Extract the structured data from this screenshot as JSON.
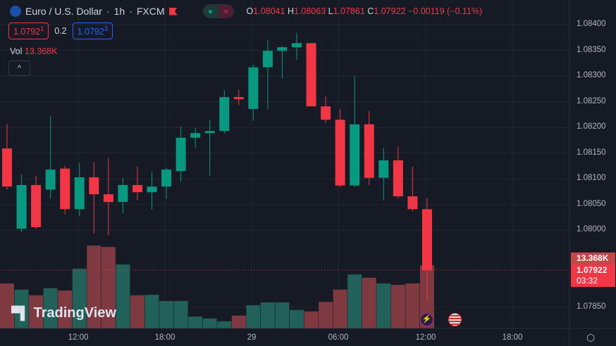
{
  "header": {
    "symbol": "Euro / U.S. Dollar",
    "interval": "1h",
    "exchange": "FXCM",
    "sep": "·",
    "approx_icon": "≈",
    "ohlc": {
      "o_label": "O",
      "o": "1.08041",
      "h_label": "H",
      "h": "1.08063",
      "l_label": "L",
      "l": "1.07861",
      "c_label": "C",
      "c": "1.07922",
      "change": "−0.00119 (−0.11%)"
    }
  },
  "quotes": {
    "sell": "1.0792",
    "sell_sup": "1",
    "spread": "0.2",
    "buy": "1.0792",
    "buy_sup": "3"
  },
  "volume_legend": {
    "label": "Vol",
    "value": "13.368K"
  },
  "logo": "TradingView",
  "price_axis": [
    "1.08400",
    "1.08350",
    "1.08300",
    "1.08250",
    "1.08200",
    "1.08150",
    "1.08100",
    "1.08050",
    "1.08000",
    "1.07850"
  ],
  "time_axis": [
    "12:00",
    "18:00",
    "29",
    "06:00",
    "12:00",
    "18:00"
  ],
  "tags": {
    "volume": "13.368K",
    "price": "1.07922",
    "countdown": "03:32"
  },
  "colors": {
    "up": "#089981",
    "down": "#f23645",
    "up_vol": "#22605a",
    "down_vol": "#7e3a40"
  },
  "chart_data": {
    "type": "candlestick",
    "ylim": [
      1.078,
      1.0845
    ],
    "candles": [
      [
        1.08159,
        1.08207,
        1.08079,
        1.08085
      ],
      [
        1.08003,
        1.08109,
        1.07996,
        1.08088
      ],
      [
        1.08088,
        1.08106,
        1.08003,
        1.08006
      ],
      [
        1.08079,
        1.08222,
        1.08061,
        1.08118
      ],
      [
        1.0812,
        1.08125,
        1.08031,
        1.08041
      ],
      [
        1.08041,
        1.08131,
        1.08028,
        1.08103
      ],
      [
        1.08103,
        1.08133,
        1.07994,
        1.0807
      ],
      [
        1.0807,
        1.0814,
        1.0799,
        1.08055
      ],
      [
        1.08055,
        1.08102,
        1.08033,
        1.08088
      ],
      [
        1.08088,
        1.08124,
        1.08058,
        1.08074
      ],
      [
        1.08074,
        1.08113,
        1.0804,
        1.08085
      ],
      [
        1.08085,
        1.08122,
        1.08061,
        1.08118
      ],
      [
        1.08115,
        1.08202,
        1.08095,
        1.0818
      ],
      [
        1.0818,
        1.08199,
        1.08161,
        1.08189
      ],
      [
        1.08189,
        1.08215,
        1.08106,
        1.08193
      ],
      [
        1.08193,
        1.08273,
        1.08188,
        1.08259
      ],
      [
        1.08259,
        1.08273,
        1.08243,
        1.08255
      ],
      [
        1.08236,
        1.08322,
        1.08213,
        1.08317
      ],
      [
        1.08317,
        1.0837,
        1.08236,
        1.08349
      ],
      [
        1.08349,
        1.08359,
        1.08295,
        1.08356
      ],
      [
        1.08356,
        1.08384,
        1.08332,
        1.08364
      ],
      [
        1.08364,
        1.08364,
        1.08241,
        1.08241
      ],
      [
        1.08241,
        1.0826,
        1.08208,
        1.08215
      ],
      [
        1.08215,
        1.08236,
        1.08084,
        1.08087
      ],
      [
        1.08087,
        1.083,
        1.08084,
        1.08206
      ],
      [
        1.08206,
        1.08232,
        1.08088,
        1.08102
      ],
      [
        1.08102,
        1.08161,
        1.08058,
        1.08136
      ],
      [
        1.08136,
        1.08163,
        1.08062,
        1.08066
      ],
      [
        1.08066,
        1.08124,
        1.08037,
        1.08041
      ],
      [
        1.08041,
        1.08063,
        1.07861,
        1.07922
      ]
    ],
    "volume_k": [
      9.5,
      8.2,
      7.0,
      8.5,
      8.0,
      12.6,
      17.5,
      17.2,
      13.5,
      7.0,
      7.1,
      5.8,
      5.8,
      2.5,
      2.1,
      1.5,
      2.7,
      4.9,
      5.5,
      5.5,
      3.9,
      3.6,
      5.6,
      8.2,
      11.4,
      10.7,
      9.5,
      9.2,
      9.5,
      13.368
    ]
  }
}
